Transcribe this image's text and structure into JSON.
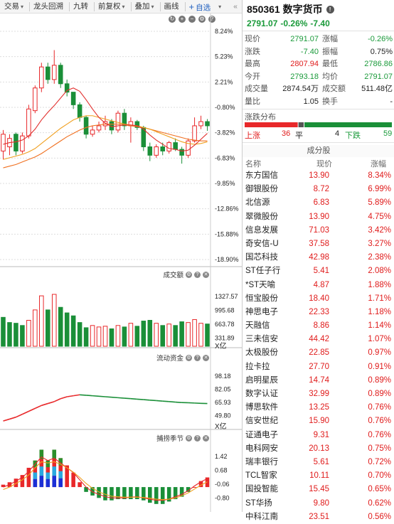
{
  "toolbar": {
    "items": [
      {
        "label": "交易",
        "dropdown": true
      },
      {
        "label": "龙头回溯",
        "dropdown": false
      },
      {
        "label": "九转",
        "dropdown": false
      },
      {
        "label": "前复权",
        "dropdown": true
      },
      {
        "label": "叠加",
        "dropdown": true
      },
      {
        "label": "画线",
        "dropdown": false
      }
    ],
    "add_watch": "自选",
    "add_watch_plus": "+"
  },
  "chart_data": [
    {
      "type": "candlestick",
      "name": "price",
      "ylabels": [
        "8.24%",
        "5.23%",
        "2.21%",
        "-0.80%",
        "-3.82%",
        "-6.83%",
        "-9.85%",
        "-12.86%",
        "-15.88%",
        "-18.90%"
      ],
      "ylim": [
        -18.9,
        8.24
      ],
      "colors": {
        "up": "#e8282a",
        "down": "#1a8f38",
        "ma_short": "#e2302e",
        "ma_mid": "#f0a020",
        "ma_long": "#f07020"
      },
      "candles": [
        [
          -6.0,
          -4.0,
          -3.5,
          -7.0
        ],
        [
          -5.5,
          -4.5,
          -4.0,
          -6.5
        ],
        [
          -4.0,
          -6.0,
          -3.8,
          -6.5
        ],
        [
          -6.0,
          -4.2,
          -3.8,
          -6.3
        ],
        [
          -4.2,
          -1.0,
          -0.5,
          -4.5
        ],
        [
          -1.2,
          1.5,
          1.8,
          -1.5
        ],
        [
          1.5,
          4.0,
          4.5,
          1.0
        ],
        [
          4.0,
          2.5,
          4.5,
          2.0
        ],
        [
          2.5,
          4.2,
          6.0,
          2.0
        ],
        [
          4.2,
          2.0,
          4.5,
          1.5
        ],
        [
          2.0,
          1.0,
          2.5,
          0.5
        ],
        [
          1.0,
          -0.5,
          1.0,
          -1.0
        ],
        [
          -0.5,
          -2.0,
          -0.2,
          -2.5
        ],
        [
          -2.0,
          -4.0,
          -1.8,
          -4.5
        ],
        [
          -4.0,
          -3.5,
          -3.0,
          -4.3
        ],
        [
          -3.5,
          -3.0,
          -2.5,
          -3.8
        ],
        [
          -3.0,
          -2.5,
          -1.8,
          -3.5
        ],
        [
          -2.5,
          -3.5,
          -2.2,
          -4.0
        ],
        [
          -3.5,
          -1.5,
          -1.2,
          -3.8
        ],
        [
          -1.5,
          -3.0,
          -1.0,
          -3.5
        ],
        [
          -3.0,
          -2.5,
          -2.0,
          -5.0
        ],
        [
          -2.5,
          -3.2,
          -2.3,
          -3.5
        ],
        [
          -3.2,
          -5.5,
          -3.0,
          -6.0
        ],
        [
          -5.5,
          -6.5,
          -5.0,
          -7.2
        ],
        [
          -6.5,
          -5.5,
          -5.2,
          -6.8
        ],
        [
          -5.5,
          -6.0,
          -5.0,
          -6.5
        ],
        [
          -6.0,
          -5.0,
          -4.8,
          -6.3
        ],
        [
          -5.0,
          -5.8,
          -4.5,
          -6.0
        ],
        [
          -5.8,
          -6.5,
          -5.5,
          -7.5
        ],
        [
          -6.5,
          -4.8,
          -4.5,
          -6.8
        ],
        [
          -4.8,
          -3.0,
          -2.0,
          -5.0
        ],
        [
          -3.0,
          -2.5,
          -1.8,
          -3.4
        ],
        [
          -2.5,
          -3.0,
          -2.2,
          -3.6
        ]
      ],
      "ma_short": [
        -5.2,
        -5.0,
        -4.9,
        -4.7,
        -4.2,
        -3.4,
        -2.3,
        -1.4,
        -0.6,
        0.3,
        1.2,
        1.5,
        1.1,
        0.1,
        -1.0,
        -2.0,
        -2.7,
        -3.1,
        -3.0,
        -2.9,
        -2.9,
        -3.0,
        -3.4,
        -4.1,
        -4.7,
        -5.2,
        -5.7,
        -5.8,
        -6.0,
        -5.9,
        -5.3,
        -4.6,
        -3.9
      ],
      "ma_mid": [
        -7.0,
        -6.8,
        -6.6,
        -6.4,
        -6.1,
        -5.7,
        -5.1,
        -4.5,
        -3.9,
        -3.3,
        -2.8,
        -2.3,
        -2.0,
        -1.8,
        -1.8,
        -2.0,
        -2.2,
        -2.4,
        -2.6,
        -2.8,
        -2.9,
        -3.0,
        -3.2,
        -3.4,
        -3.7,
        -4.0,
        -4.3,
        -4.6,
        -4.9,
        -5.1,
        -5.2,
        -5.1,
        -4.9
      ],
      "ma_long": [
        -8.0,
        -7.8,
        -7.6,
        -7.3,
        -7.0,
        -6.7,
        -6.3,
        -5.8,
        -5.3,
        -4.8,
        -4.3,
        -3.9,
        -3.5,
        -3.2,
        -3.0,
        -2.9,
        -2.8,
        -2.8,
        -2.8,
        -2.9,
        -3.0,
        -3.1,
        -3.2,
        -3.4,
        -3.6,
        -3.8,
        -4.0,
        -4.2,
        -4.4,
        -4.6,
        -4.7,
        -4.8,
        -4.8
      ]
    },
    {
      "type": "bar",
      "name": "volume",
      "title": "成交额",
      "unit": "X亿",
      "ylabels": [
        "1327.57",
        "995.68",
        "663.78",
        "331.89"
      ],
      "ylim": [
        0,
        1400
      ],
      "values": [
        780,
        640,
        620,
        560,
        700,
        980,
        1360,
        980,
        1400,
        1050,
        900,
        820,
        640,
        500,
        560,
        520,
        540,
        470,
        560,
        520,
        620,
        540,
        680,
        700,
        620,
        560,
        600,
        560,
        660,
        640,
        720,
        620,
        600
      ],
      "up": [
        false,
        false,
        false,
        false,
        true,
        true,
        true,
        false,
        true,
        false,
        false,
        false,
        false,
        false,
        true,
        true,
        true,
        false,
        true,
        false,
        true,
        false,
        false,
        false,
        true,
        false,
        true,
        false,
        false,
        true,
        true,
        true,
        false
      ]
    },
    {
      "type": "line",
      "name": "capital_flow",
      "title": "流动资金",
      "unit": "X亿",
      "ylabels": [
        "98.18",
        "82.05",
        "65.93",
        "49.80"
      ],
      "ylim": [
        45,
        105
      ],
      "values": [
        50,
        52,
        54,
        57,
        60,
        63,
        66,
        68,
        70,
        73,
        75,
        76,
        77,
        76.5,
        76,
        75.5,
        75,
        74.5,
        74,
        73.5,
        73,
        72.5,
        72,
        71.5,
        71,
        70.5,
        70,
        69.5,
        69,
        68.8,
        68.5,
        68.2,
        68
      ]
    },
    {
      "type": "bar",
      "name": "cycle",
      "title": "捕捞季节",
      "ylabels": [
        "1.42",
        "0.68",
        "-0.06",
        "-0.80"
      ],
      "ylim": [
        -1.0,
        1.8
      ],
      "values": [
        0.1,
        0.2,
        0.35,
        0.5,
        0.8,
        1.1,
        1.55,
        1.1,
        1.55,
        1.2,
        0.9,
        0.6,
        0.2,
        -0.2,
        -0.35,
        -0.45,
        -0.55,
        -0.55,
        -0.5,
        -0.5,
        -0.5,
        -0.5,
        -0.55,
        -0.65,
        -0.7,
        -0.7,
        -0.6,
        -0.5,
        -0.4,
        -0.2,
        0.0,
        0.25,
        0.4
      ],
      "line_a": [
        0.0,
        0.1,
        0.25,
        0.4,
        0.65,
        0.95,
        1.25,
        1.1,
        1.2,
        1.0,
        0.8,
        0.6,
        0.3,
        0.0,
        -0.2,
        -0.3,
        -0.4,
        -0.45,
        -0.45,
        -0.45,
        -0.42,
        -0.4,
        -0.45,
        -0.5,
        -0.55,
        -0.55,
        -0.5,
        -0.4,
        -0.3,
        -0.15,
        0.05,
        0.22,
        0.35
      ],
      "line_b": [
        -0.1,
        0.0,
        0.15,
        0.3,
        0.5,
        0.8,
        1.05,
        1.0,
        1.05,
        0.95,
        0.8,
        0.62,
        0.4,
        0.15,
        -0.05,
        -0.2,
        -0.3,
        -0.38,
        -0.4,
        -0.42,
        -0.42,
        -0.42,
        -0.43,
        -0.46,
        -0.5,
        -0.52,
        -0.5,
        -0.45,
        -0.36,
        -0.24,
        -0.08,
        0.08,
        0.22
      ]
    }
  ],
  "quote": {
    "code": "850361",
    "name": "数字货币",
    "price": "2791.07",
    "change_pct": "-0.26%",
    "change": "-7.40",
    "rows": [
      {
        "l1": "现价",
        "v1": "2791.07",
        "c1": "g",
        "l2": "涨幅",
        "v2": "-0.26%",
        "c2": "g"
      },
      {
        "l1": "涨跌",
        "v1": "-7.40",
        "c1": "g",
        "l2": "振幅",
        "v2": "0.75%",
        "c2": "k"
      },
      {
        "l1": "最高",
        "v1": "2807.94",
        "c1": "r",
        "l2": "最低",
        "v2": "2786.86",
        "c2": "g"
      },
      {
        "l1": "今开",
        "v1": "2793.18",
        "c1": "g",
        "l2": "均价",
        "v2": "2791.07",
        "c2": "g"
      },
      {
        "l1": "成交量",
        "v1": "2874.54万",
        "c1": "k",
        "l2": "成交额",
        "v2": "511.48亿",
        "c2": "k"
      },
      {
        "l1": "量比",
        "v1": "1.05",
        "c1": "k",
        "l2": "换手",
        "v2": "-",
        "c2": "k"
      }
    ]
  },
  "distribution": {
    "title": "涨跌分布",
    "up_label": "上涨",
    "up_count": 36,
    "flat_label": "平",
    "flat_count": 4,
    "down_label": "下跌",
    "down_count": 59
  },
  "constituents": {
    "title": "成分股",
    "col_name": "名称",
    "col_price": "现价",
    "col_change": "涨幅",
    "rows": [
      {
        "name": "东方国信",
        "price": "13.90",
        "change": "8.34%"
      },
      {
        "name": "御银股份",
        "price": "8.72",
        "change": "6.99%"
      },
      {
        "name": "北信源",
        "price": "6.83",
        "change": "5.89%"
      },
      {
        "name": "翠微股份",
        "price": "13.90",
        "change": "4.75%"
      },
      {
        "name": "信息发展",
        "price": "71.03",
        "change": "3.42%"
      },
      {
        "name": "奇安信-U",
        "price": "37.58",
        "change": "3.27%"
      },
      {
        "name": "国芯科技",
        "price": "42.98",
        "change": "2.38%"
      },
      {
        "name": "ST任子行",
        "price": "5.41",
        "change": "2.08%"
      },
      {
        "name": "*ST天喻",
        "price": "4.87",
        "change": "1.88%"
      },
      {
        "name": "恒宝股份",
        "price": "18.40",
        "change": "1.71%"
      },
      {
        "name": "神思电子",
        "price": "22.33",
        "change": "1.18%"
      },
      {
        "name": "天融信",
        "price": "8.86",
        "change": "1.14%"
      },
      {
        "name": "三未信安",
        "price": "44.42",
        "change": "1.07%"
      },
      {
        "name": "太极股份",
        "price": "22.85",
        "change": "0.97%"
      },
      {
        "name": "拉卡拉",
        "price": "27.70",
        "change": "0.91%"
      },
      {
        "name": "启明星辰",
        "price": "14.74",
        "change": "0.89%"
      },
      {
        "name": "数字认证",
        "price": "32.99",
        "change": "0.89%"
      },
      {
        "name": "博思软件",
        "price": "13.25",
        "change": "0.76%"
      },
      {
        "name": "信安世纪",
        "price": "15.90",
        "change": "0.76%"
      },
      {
        "name": "证通电子",
        "price": "9.31",
        "change": "0.76%"
      },
      {
        "name": "电科网安",
        "price": "20.13",
        "change": "0.75%"
      },
      {
        "name": "瑞丰银行",
        "price": "5.61",
        "change": "0.72%"
      },
      {
        "name": "TCL智家",
        "price": "10.11",
        "change": "0.70%"
      },
      {
        "name": "国投智能",
        "price": "15.45",
        "change": "0.65%"
      },
      {
        "name": "ST华扬",
        "price": "9.80",
        "change": "0.62%"
      },
      {
        "name": "中科江南",
        "price": "23.51",
        "change": "0.56%"
      }
    ]
  }
}
